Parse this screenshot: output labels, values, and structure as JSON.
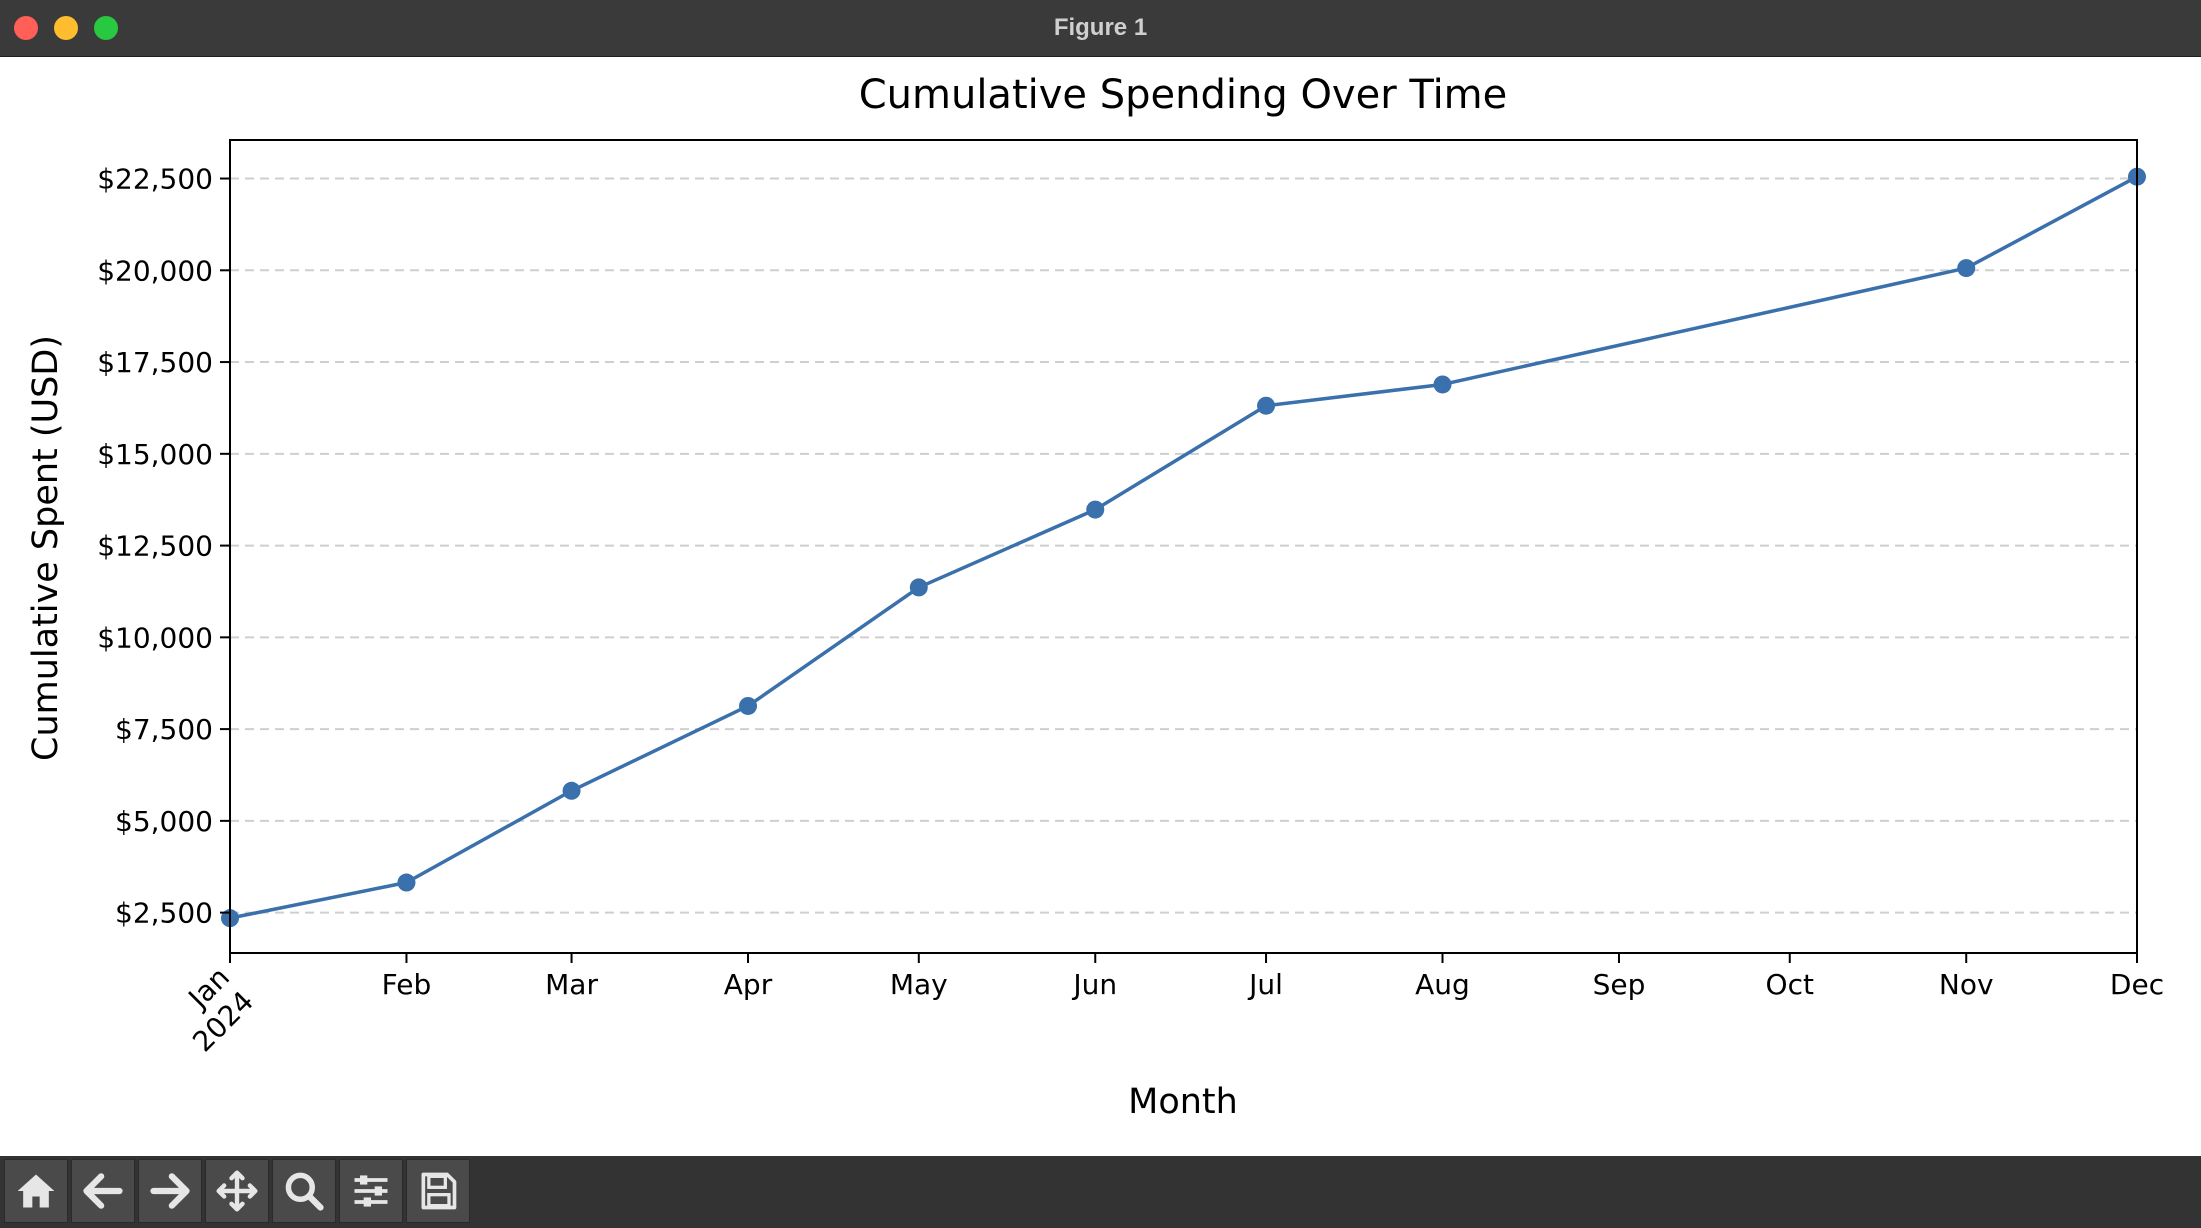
{
  "window": {
    "title": "Figure 1"
  },
  "toolbar": {
    "buttons": [
      {
        "name": "home-button",
        "icon": "home-icon"
      },
      {
        "name": "back-button",
        "icon": "arrow-left-icon"
      },
      {
        "name": "forward-button",
        "icon": "arrow-right-icon"
      },
      {
        "name": "pan-button",
        "icon": "move-icon"
      },
      {
        "name": "zoom-button",
        "icon": "magnifier-icon"
      },
      {
        "name": "configure-subplots-button",
        "icon": "sliders-icon"
      },
      {
        "name": "save-button",
        "icon": "floppy-disk-icon"
      }
    ]
  },
  "chart_data": {
    "type": "line",
    "title": "Cumulative Spending Over Time",
    "xlabel": "Month",
    "ylabel": "Cumulative Spent (USD)",
    "x_ticks": [
      "Jan",
      "Feb",
      "Mar",
      "Apr",
      "May",
      "Jun",
      "Jul",
      "Aug",
      "Sep",
      "Oct",
      "Nov",
      "Dec"
    ],
    "x_year_label": "2024",
    "y_ticks": [
      2500,
      5000,
      7500,
      10000,
      12500,
      15000,
      17500,
      20000,
      22500
    ],
    "y_tick_labels": [
      "$2,500",
      "$5,000",
      "$7,500",
      "$10,000",
      "$12,500",
      "$15,000",
      "$17,500",
      "$20,000",
      "$22,500"
    ],
    "ylim": [
      1400,
      23550
    ],
    "grid": "y-dashed",
    "series": [
      {
        "x": [
          "2024-01-01",
          "2024-02-01",
          "2024-03-01",
          "2024-04-01",
          "2024-05-01",
          "2024-06-01",
          "2024-07-01",
          "2024-08-01",
          "2024-11-01",
          "2024-12-01"
        ],
        "y": [
          2350,
          3320,
          5820,
          8130,
          11360,
          13480,
          16310,
          16890,
          20060,
          22550
        ],
        "color": "#3a70ab"
      }
    ]
  }
}
